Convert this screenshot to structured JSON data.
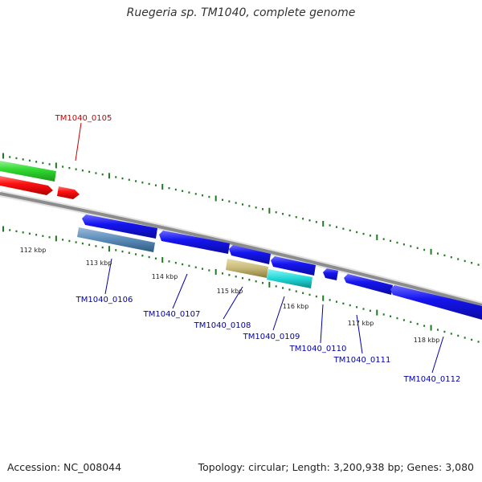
{
  "title": "Ruegeria sp. TM1040, complete genome",
  "footer": {
    "accession": "Accession: NC_008044",
    "stats": "Topology: circular; Length: 3,200,938 bp; Genes: 3,080"
  },
  "colors": {
    "backbone": "#8c8c8c",
    "tick": "#1e7a1e",
    "forward_cds": "#22cc22",
    "forward_rna": "#ee1111",
    "reverse_cds": "#1111ee",
    "label_red": "#cc0000",
    "label_blue": "#0000aa",
    "ruler_text": "#222222"
  },
  "ruler": [
    {
      "label": "112 kbp"
    },
    {
      "label": "113 kbp"
    },
    {
      "label": "114 kbp"
    },
    {
      "label": "115 kbp"
    },
    {
      "label": "116 kbp"
    },
    {
      "label": "117 kbp"
    },
    {
      "label": "118 kbp"
    }
  ],
  "genes": [
    {
      "id": "forward-gene-green",
      "strand": "+",
      "label": ""
    },
    {
      "id": "forward-gene-red-1",
      "strand": "+",
      "label": ""
    },
    {
      "id": "forward-gene-red-2",
      "strand": "+",
      "label": "TM1040_0105"
    },
    {
      "id": "gene-0106-a",
      "strand": "-",
      "label": ""
    },
    {
      "id": "gene-0106-b",
      "strand": "-",
      "label": "TM1040_0106"
    },
    {
      "id": "gene-0107",
      "strand": "-",
      "label": "TM1040_0107"
    },
    {
      "id": "gene-0108-a",
      "strand": "-",
      "label": ""
    },
    {
      "id": "gene-0108-b",
      "strand": "-",
      "label": "TM1040_0108"
    },
    {
      "id": "gene-0109-a",
      "strand": "-",
      "label": ""
    },
    {
      "id": "gene-0109-b",
      "strand": "-",
      "label": "TM1040_0109"
    },
    {
      "id": "gene-0110",
      "strand": "-",
      "label": "TM1040_0110"
    },
    {
      "id": "gene-0111",
      "strand": "-",
      "label": "TM1040_0111"
    },
    {
      "id": "gene-0112",
      "strand": "-",
      "label": "TM1040_0112"
    }
  ]
}
